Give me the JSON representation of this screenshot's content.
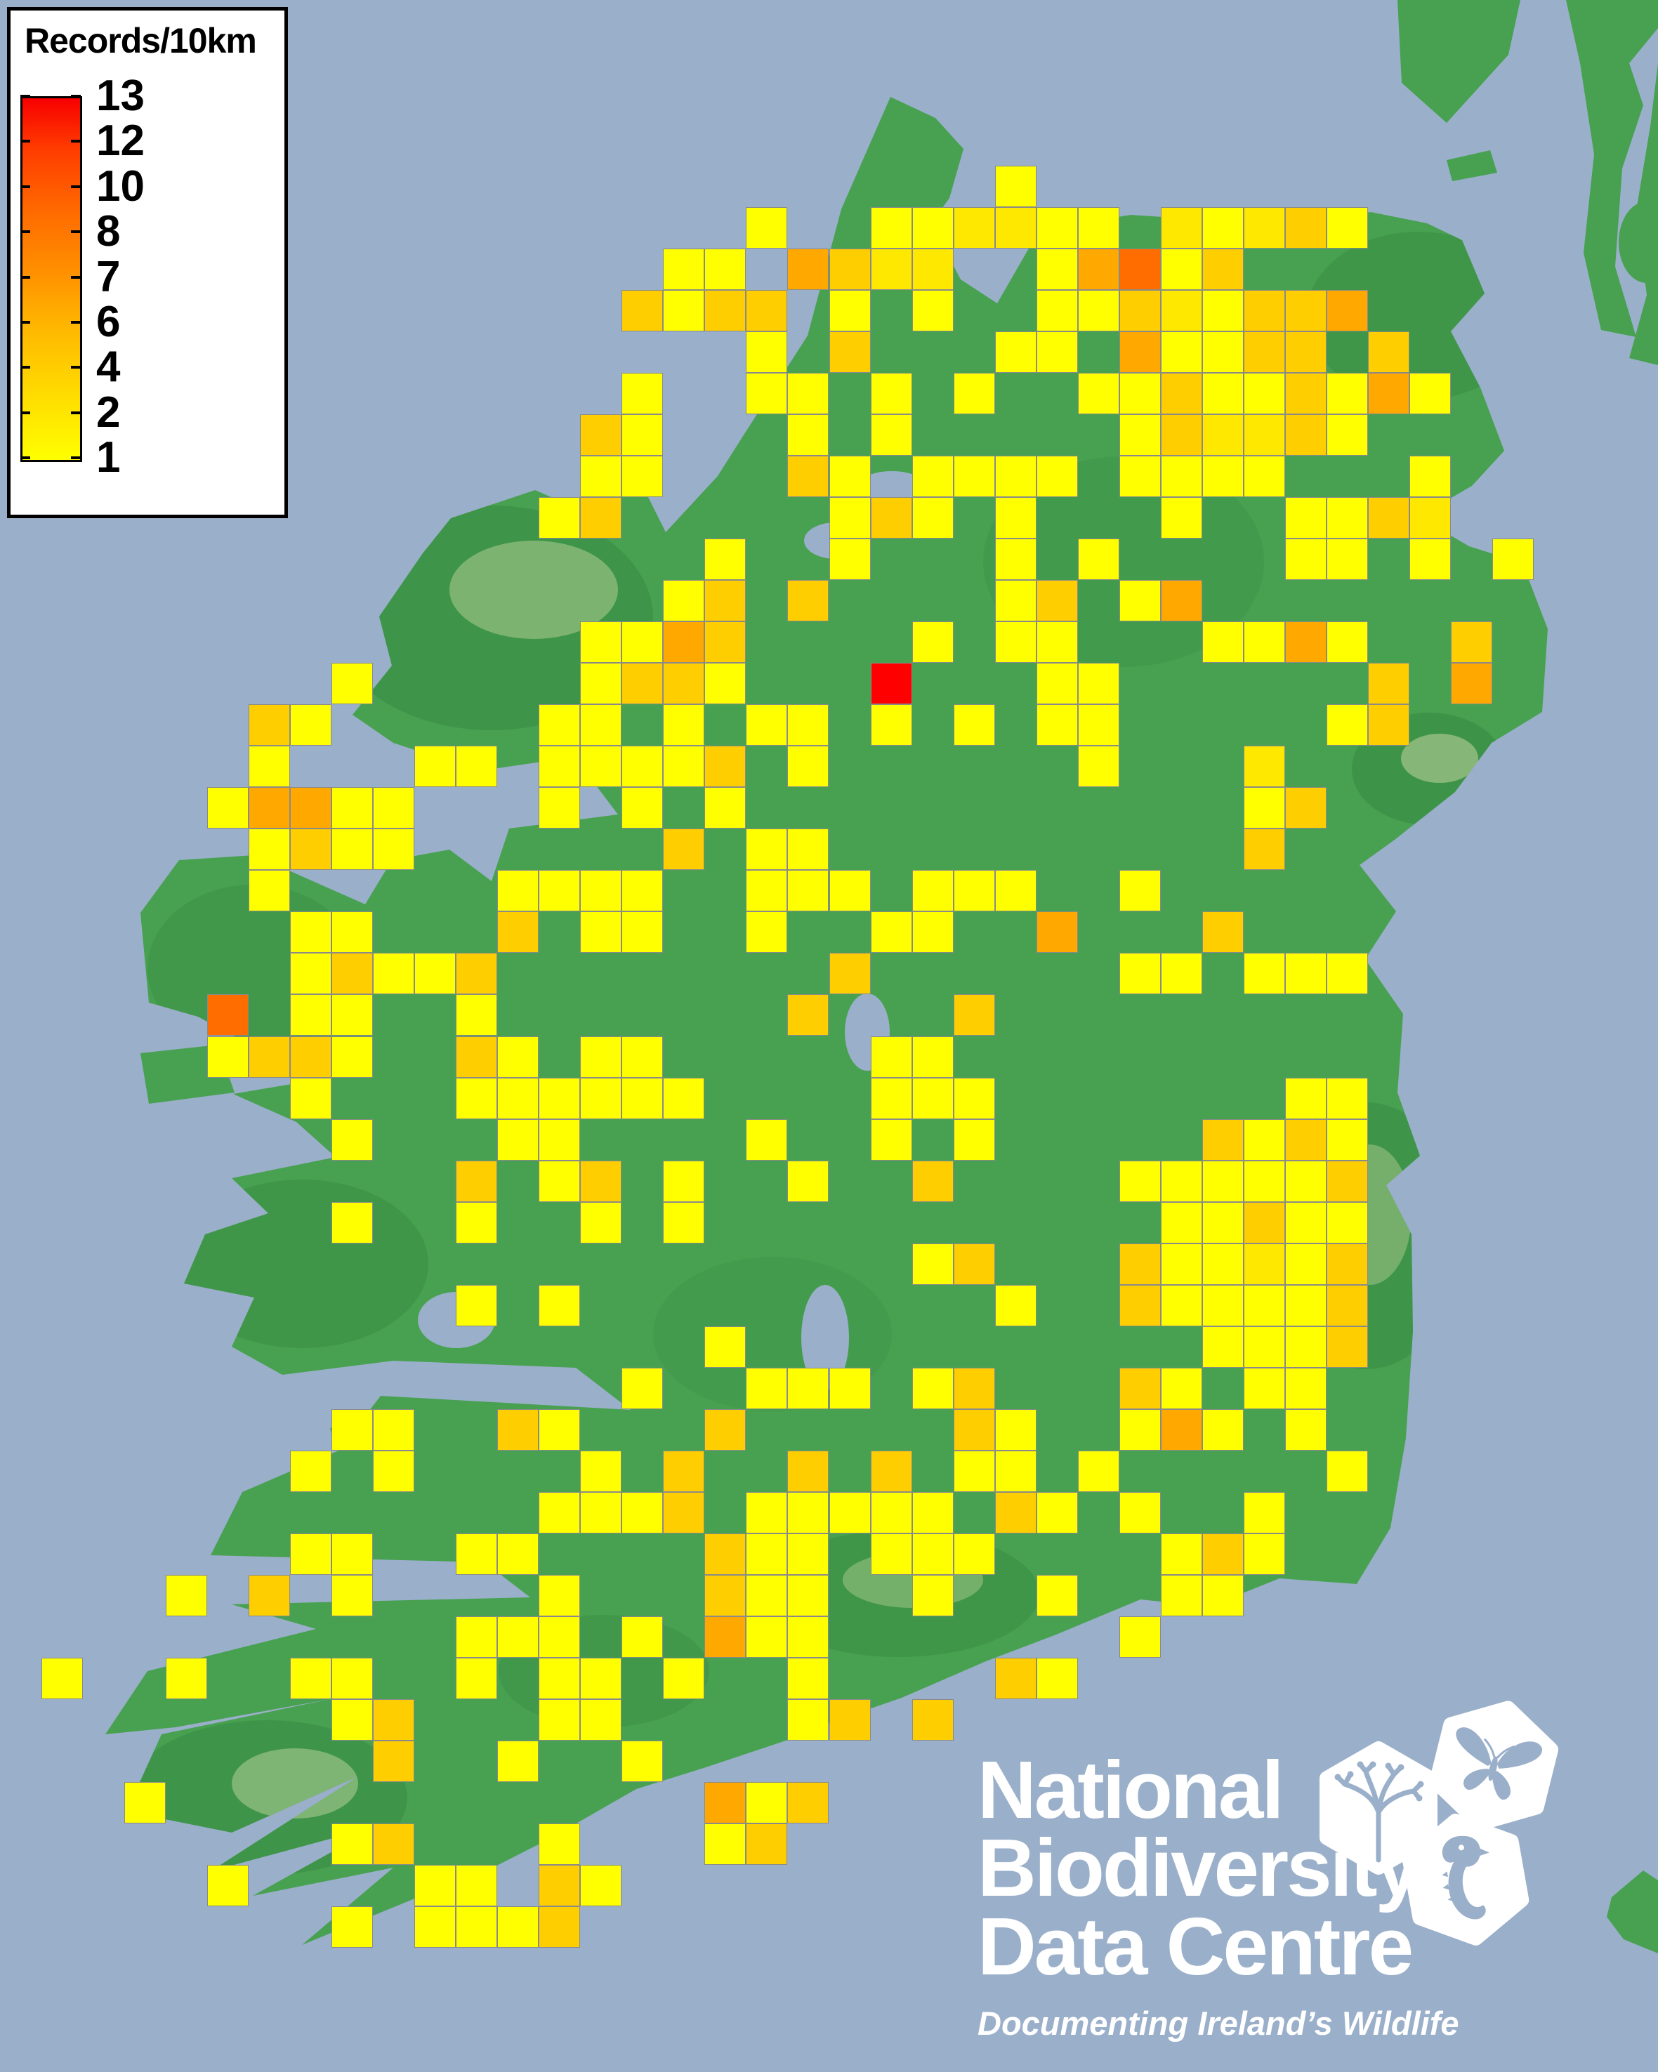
{
  "legend": {
    "title": "Records/10km",
    "labels": [
      "13",
      "12",
      "10",
      "8",
      "7",
      "6",
      "4",
      "2",
      "1"
    ]
  },
  "logo": {
    "line1": "National",
    "line2": "Biodiversity",
    "line3": "Data Centre",
    "tagline": "Documenting Ireland’s Wildlife",
    "icons": [
      "plant-icon",
      "butterfly-icon",
      "seahorse-icon"
    ]
  },
  "map": {
    "region": "Ireland",
    "sea_color": "#9AAFC9",
    "land_color": "#47A150",
    "lake_color": "#9AAFC9",
    "cell_border_color": "#8a8a8a"
  },
  "grid": {
    "cols": 40,
    "rows_count": 50,
    "cell_w": 59.025,
    "cell_h": 59.02,
    "legend_value_of_code": {
      "1": 1,
      "2": 2,
      "3": 4,
      "4": 7,
      "5": 9,
      "6": 13
    },
    "palette": {
      "1": "#FFFF00",
      "2": "#FFE800",
      "3": "#FFCE00",
      "4": "#FFA800",
      "5": "#FF6C00",
      "6": "#FF0000"
    },
    "rows": [
      "........................................",
      "........................................",
      "........................................",
      "........................................",
      "........................1...............",
      "..................1..112211.21231.......",
      "................11.4322..14513..........",
      "...............3133.1.1..11321334.......",
      "..................1.3...11.41133.3......",
      "...............1..11.1.1..113113141.....",
      "..............31...1.1.....132231.......",
      "..............11...31.1111.1111...1.....",
      ".............13.....131.1...1..1132.....",
      ".................1..1...1.1....11.1.1...",
      "................13.3....13.14...........",
      "..............1143....1.11...1141..3....",
      "........1.....1331...6...11......3.4....",
      "......31.....11.1.11.1.1.11.....13......",
      "......1...11.11113.1......1...2.........",
      ".....14411...1.1.1............13........",
      "......1311......3.11..........3.........",
      "......1.....1111..111.111..1............",
      ".......11...3.11..1..11..4...3..........",
      ".......13113........3......11.111.......",
      ".....5.11..1.......3...3................",
      ".....1331..31.11.....11.................",
      ".......1...111111....111.......11.......",
      "........1...11....1..1.1.....3131.......",
      "...........3.13.1..1..3....111113.......",
      "........1..1..1.1...........11311.......",
      "......................13...311213.......",
      "...........1.1..........1..311113.......",
      ".................1...........1113.......",
      "...............1..111.13...31.11........",
      "........11..31...3.....31..141.1........",
      ".......1.1....1.3..3.3.11.1.....1.......",
      ".............1113.11111.31.1..1.........",
      ".......11..11....311.111....131.........",
      "....1.3.1....1...311..1..1..11..........",
      "...........111.1.411.......1............",
      ".1..1..11..1.11.1..1....31..............",
      "........13...11....13.3.................",
      ".........3..1..1........................",
      "...1.............413....................",
      "........13...1...13.....................",
      ".....1....11.31.........................",
      "........1.1113..........................",
      "........................................",
      "........................................",
      "........................................"
    ]
  }
}
